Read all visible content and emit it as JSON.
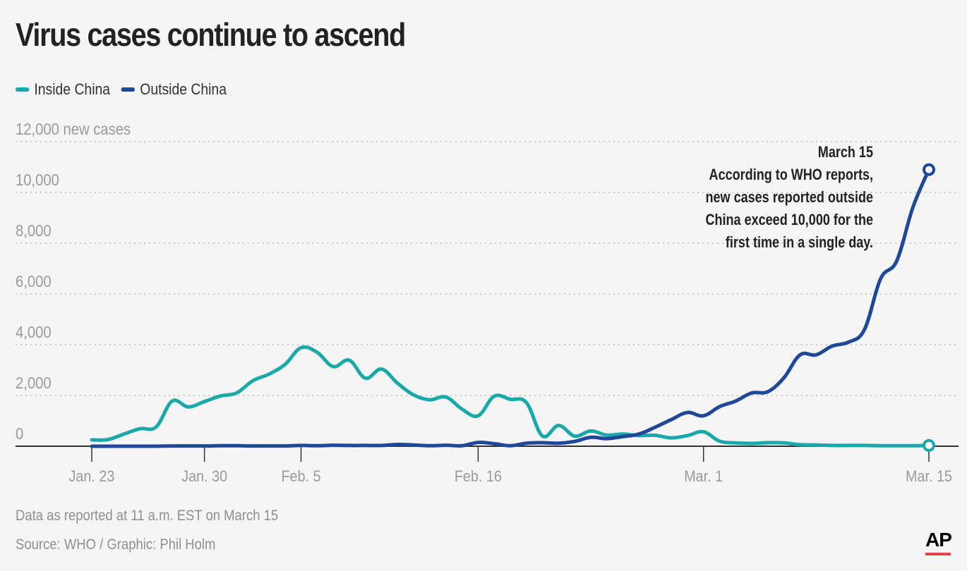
{
  "title": "Virus cases continue to ascend",
  "legend": [
    {
      "label": "Inside China",
      "color": "#1aa8a8"
    },
    {
      "label": "Outside China",
      "color": "#1f4899"
    }
  ],
  "annotation": {
    "lines": [
      "March 15",
      "According to WHO reports,",
      "new cases reported outside",
      "China exceed 10,000 for the",
      "first time in a single day."
    ]
  },
  "footnote": "Data as reported at 11 a.m. EST on March 15",
  "source": "Source: WHO / Graphic: Phil Holm",
  "logo": "AP",
  "chart_data": {
    "type": "line",
    "x": [
      "Jan. 23",
      "Jan. 24",
      "Jan. 25",
      "Jan. 26",
      "Jan. 27",
      "Jan. 28",
      "Jan. 29",
      "Jan. 30",
      "Jan. 31",
      "Feb. 1",
      "Feb. 2",
      "Feb. 3",
      "Feb. 4",
      "Feb. 5",
      "Feb. 6",
      "Feb. 7",
      "Feb. 8",
      "Feb. 9",
      "Feb. 10",
      "Feb. 11",
      "Feb. 12",
      "Feb. 13",
      "Feb. 14",
      "Feb. 15",
      "Feb. 16",
      "Feb. 17",
      "Feb. 18",
      "Feb. 19",
      "Feb. 20",
      "Feb. 21",
      "Feb. 22",
      "Feb. 23",
      "Feb. 24",
      "Feb. 25",
      "Feb. 26",
      "Feb. 27",
      "Feb. 28",
      "Feb. 29",
      "Mar. 1",
      "Mar. 2",
      "Mar. 3",
      "Mar. 4",
      "Mar. 5",
      "Mar. 6",
      "Mar. 7",
      "Mar. 8",
      "Mar. 9",
      "Mar. 10",
      "Mar. 11",
      "Mar. 12",
      "Mar. 13",
      "Mar. 14",
      "Mar. 15"
    ],
    "x_ticks": [
      {
        "index": 0,
        "label": "Jan. 23"
      },
      {
        "index": 7,
        "label": "Jan. 30"
      },
      {
        "index": 13,
        "label": "Feb. 5"
      },
      {
        "index": 24,
        "label": "Feb. 16"
      },
      {
        "index": 38,
        "label": "Mar. 1"
      },
      {
        "index": 52,
        "label": "Mar. 15"
      }
    ],
    "y_ticks": [
      0,
      2000,
      4000,
      6000,
      8000,
      10000,
      12000
    ],
    "y_tick_labels": [
      "0",
      "2,000",
      "4,000",
      "6,000",
      "8,000",
      "10,000",
      "12,000 new cases"
    ],
    "ylim": [
      0,
      12000
    ],
    "grid": true,
    "legend_position": "top-left",
    "series": [
      {
        "name": "Inside China",
        "color": "#1aa8a8",
        "values": [
          250,
          260,
          480,
          690,
          760,
          1780,
          1550,
          1760,
          1980,
          2100,
          2580,
          2840,
          3220,
          3880,
          3700,
          3140,
          3390,
          2680,
          3040,
          2480,
          2020,
          1830,
          1940,
          1460,
          1200,
          1970,
          1850,
          1720,
          400,
          820,
          400,
          600,
          440,
          480,
          420,
          430,
          330,
          420,
          570,
          200,
          130,
          110,
          140,
          130,
          60,
          50,
          30,
          30,
          30,
          20,
          20,
          20,
          30
        ]
      },
      {
        "name": "Outside China",
        "color": "#1f4899",
        "values": [
          0,
          0,
          0,
          0,
          0,
          10,
          10,
          10,
          20,
          20,
          10,
          10,
          10,
          30,
          20,
          40,
          30,
          30,
          30,
          70,
          50,
          20,
          40,
          20,
          150,
          100,
          20,
          120,
          140,
          120,
          190,
          350,
          300,
          380,
          480,
          750,
          1050,
          1330,
          1200,
          1560,
          1780,
          2100,
          2150,
          2700,
          3600,
          3600,
          3950,
          4100,
          4600,
          6600,
          7300,
          9400,
          10900
        ]
      }
    ],
    "annotations": [
      {
        "series": "Outside China",
        "index": 52,
        "marker": "circle"
      },
      {
        "series": "Inside China",
        "index": 52,
        "marker": "circle"
      }
    ]
  }
}
